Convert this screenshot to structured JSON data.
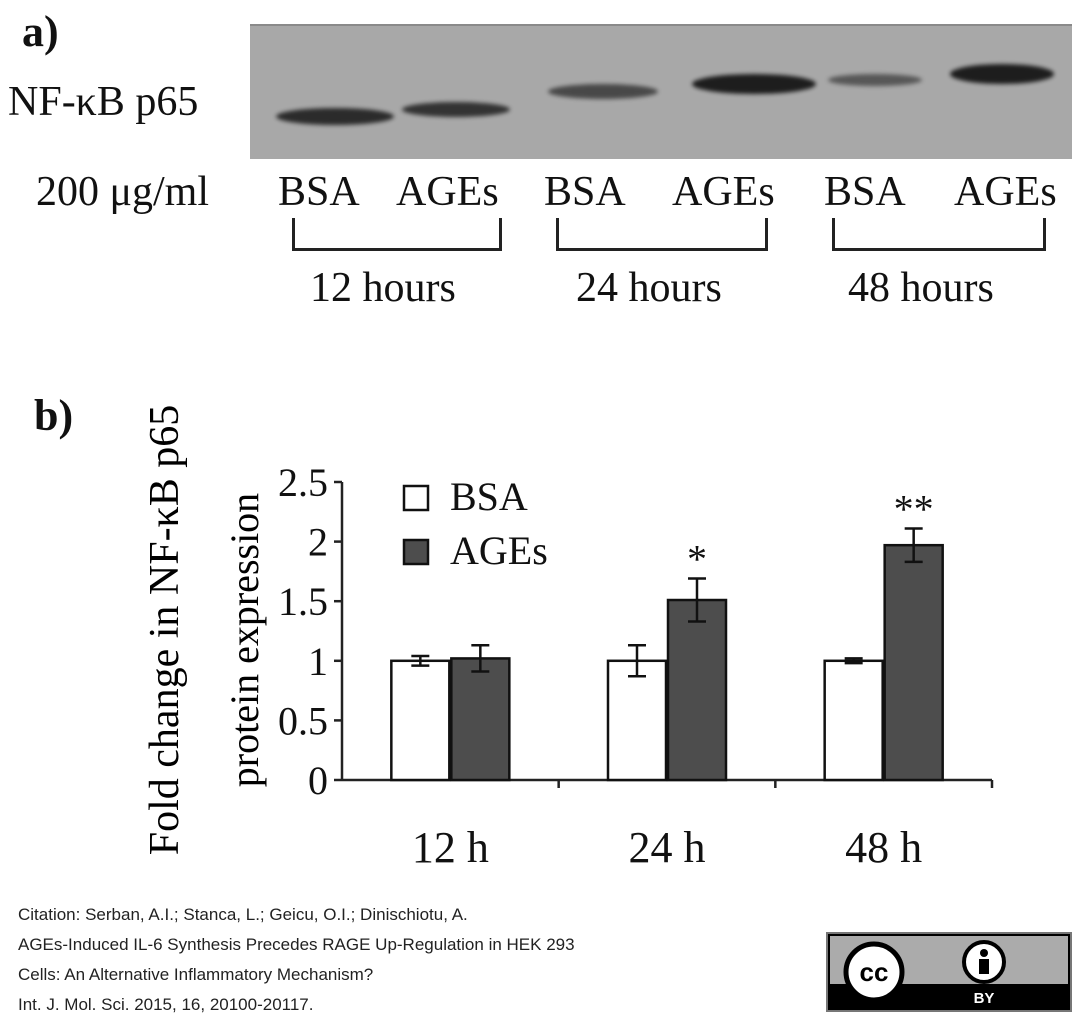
{
  "panel_a": {
    "label": "a)",
    "protein_label": "NF-κB p65",
    "dose_label": "200 μg/ml",
    "lanes": [
      "BSA",
      "AGEs",
      "BSA",
      "AGEs",
      "BSA",
      "AGEs"
    ],
    "timepoints": [
      "12 hours",
      "24 hours",
      "48 hours"
    ]
  },
  "panel_b": {
    "label": "b)"
  },
  "chart_data": {
    "type": "bar",
    "categories": [
      "12 h",
      "24 h",
      "48 h"
    ],
    "series": [
      {
        "name": "BSA",
        "color": "#ffffff",
        "values": [
          1.0,
          1.0,
          1.0
        ],
        "errors": [
          0.04,
          0.13,
          0.02
        ]
      },
      {
        "name": "AGEs",
        "color": "#4d4d4d",
        "values": [
          1.02,
          1.51,
          1.97
        ],
        "errors": [
          0.11,
          0.18,
          0.14
        ]
      }
    ],
    "significance": [
      "",
      "*",
      "**"
    ],
    "ylabel_line1": "Fold change in NF-κB p65",
    "ylabel_line2": "protein expression",
    "ylim": [
      0,
      2.5
    ],
    "yticks": [
      "0",
      "0.5",
      "1",
      "1.5",
      "2",
      "2.5"
    ],
    "legend_position": "top-left",
    "grid": false
  },
  "citation": {
    "line1": "Citation: Serban, A.I.; Stanca, L.; Geicu, O.I.; Dinischiotu, A.",
    "line2": "AGEs-Induced IL-6 Synthesis Precedes RAGE Up-Regulation in HEK 293",
    "line3": "Cells: An Alternative Inflammatory Mechanism?",
    "line4": "Int. J. Mol. Sci. 2015, 16, 20100-20117."
  },
  "license": {
    "cc_text": "cc",
    "by_text": "BY"
  }
}
